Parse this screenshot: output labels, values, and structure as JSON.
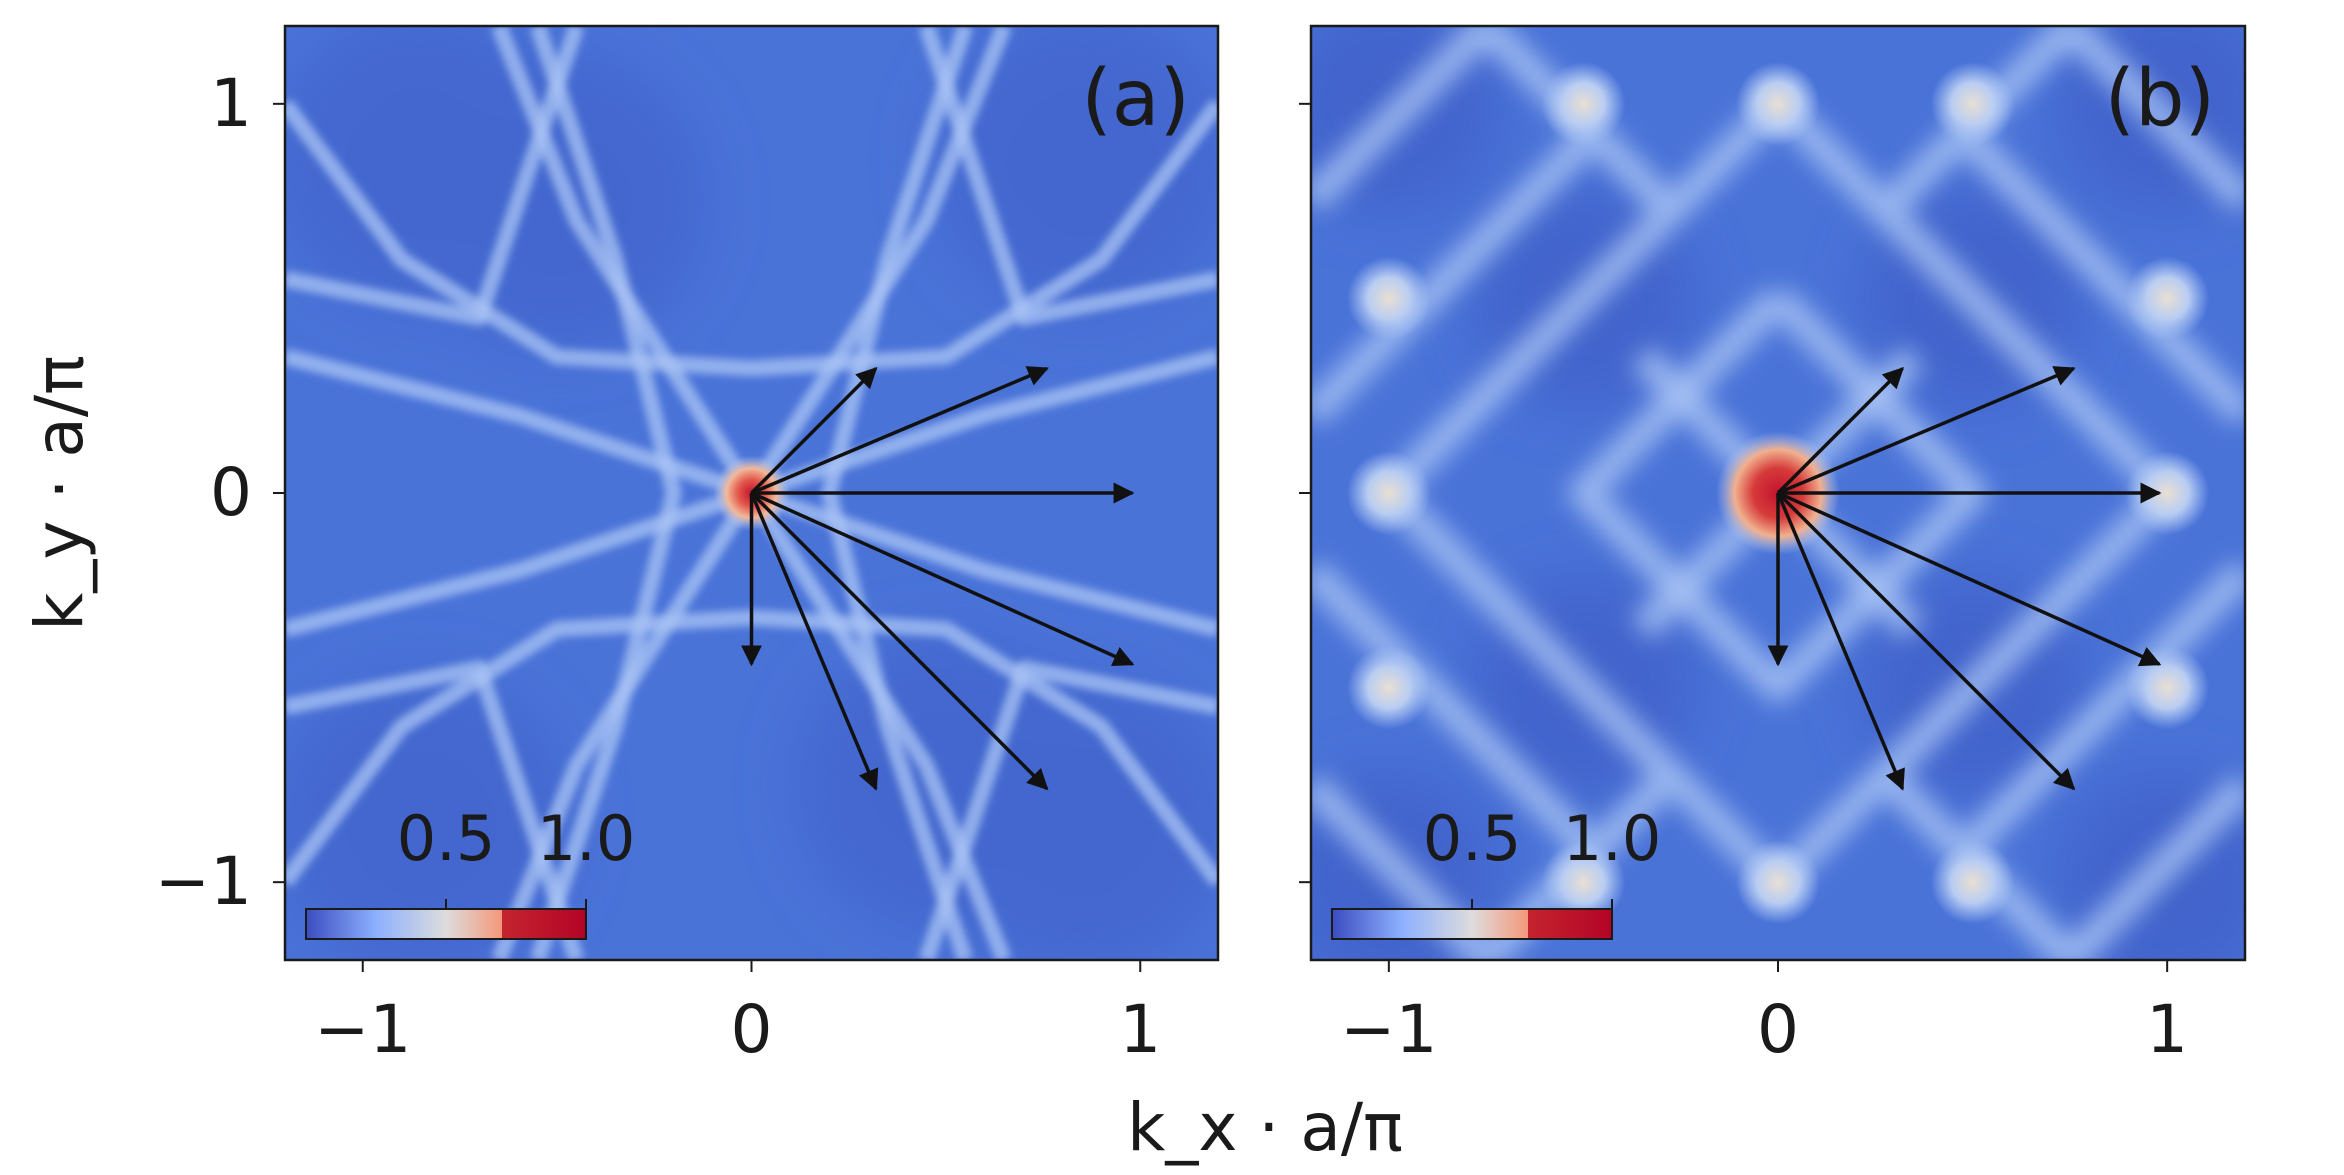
{
  "chart_data": [
    {
      "type": "heatmap",
      "panel_label": "(a)",
      "xlabel": "k_x · a/π",
      "ylabel": "k_y · a/π",
      "xlim": [
        -1.2,
        1.2
      ],
      "ylim": [
        -1.2,
        1.2
      ],
      "x_ticks": [
        -1,
        0,
        1
      ],
      "x_tick_labels": [
        "−1",
        "0",
        "1"
      ],
      "y_ticks": [
        -1,
        0,
        1
      ],
      "y_tick_labels": [
        "−1",
        "0",
        "1"
      ],
      "colorbar": {
        "ticks": [
          0.5,
          1.0
        ],
        "tick_labels": [
          "0.5",
          "1.0"
        ],
        "range": [
          0,
          1.0
        ],
        "colormap": "coolwarm"
      },
      "peak": {
        "x": 0,
        "y": 0,
        "value": 1.0
      },
      "arrows": [
        {
          "from": [
            0,
            0
          ],
          "to": [
            0.32,
            0.32
          ]
        },
        {
          "from": [
            0,
            0
          ],
          "to": [
            0.76,
            0.32
          ]
        },
        {
          "from": [
            0,
            0
          ],
          "to": [
            0.98,
            0.0
          ]
        },
        {
          "from": [
            0,
            0
          ],
          "to": [
            0.98,
            -0.44
          ]
        },
        {
          "from": [
            0,
            0
          ],
          "to": [
            0.76,
            -0.76
          ]
        },
        {
          "from": [
            0,
            0
          ],
          "to": [
            0.32,
            -0.76
          ]
        },
        {
          "from": [
            0,
            0
          ],
          "to": [
            0.0,
            -0.44
          ]
        }
      ]
    },
    {
      "type": "heatmap",
      "panel_label": "(b)",
      "xlabel": "k_x · a/π",
      "xlim": [
        -1.2,
        1.2
      ],
      "ylim": [
        -1.2,
        1.2
      ],
      "x_ticks": [
        -1,
        0,
        1
      ],
      "x_tick_labels": [
        "−1",
        "0",
        "1"
      ],
      "y_ticks": [
        -1,
        0,
        1
      ],
      "colorbar": {
        "ticks": [
          0.5,
          1.0
        ],
        "tick_labels": [
          "0.5",
          "1.0"
        ],
        "range": [
          0,
          1.0
        ],
        "colormap": "coolwarm"
      },
      "peak": {
        "x": 0,
        "y": 0,
        "value": 1.0
      },
      "arrows": [
        {
          "from": [
            0,
            0
          ],
          "to": [
            0.32,
            0.32
          ]
        },
        {
          "from": [
            0,
            0
          ],
          "to": [
            0.76,
            0.32
          ]
        },
        {
          "from": [
            0,
            0
          ],
          "to": [
            0.98,
            0.0
          ]
        },
        {
          "from": [
            0,
            0
          ],
          "to": [
            0.98,
            -0.44
          ]
        },
        {
          "from": [
            0,
            0
          ],
          "to": [
            0.76,
            -0.76
          ]
        },
        {
          "from": [
            0,
            0
          ],
          "to": [
            0.32,
            -0.76
          ]
        },
        {
          "from": [
            0,
            0
          ],
          "to": [
            0.0,
            -0.44
          ]
        }
      ]
    }
  ],
  "figure": {
    "xlabel": "k_x · a/π",
    "ylabel": "k_y · a/π"
  },
  "colors": {
    "background_blue": "#4a73d8",
    "dark_blue": "#3f60c9",
    "light_line": "#a9c4f5",
    "bright_spot": "#e6ddd2",
    "peak_red": "#c2142e",
    "arrow": "#111111",
    "axis": "#1a1a1a"
  }
}
